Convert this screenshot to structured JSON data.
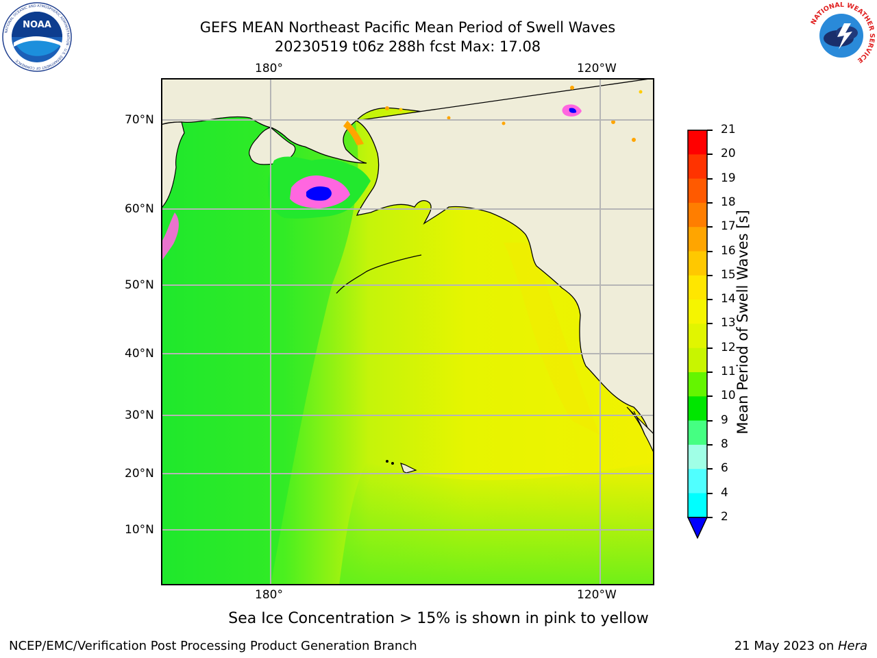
{
  "title": {
    "line1": "GEFS MEAN Northeast Pacific Mean Period of Swell Waves",
    "line2": "20230519 t06z 288h fcst   Max: 17.08"
  },
  "map": {
    "lon_ticks_top": [
      "180°",
      "120°W"
    ],
    "lon_ticks_bottom": [
      "180°",
      "120°W"
    ],
    "lat_ticks": [
      "70°N",
      "60°N",
      "50°N",
      "40°N",
      "30°N",
      "20°N",
      "10°N"
    ],
    "land_color": "#efedd9",
    "grid_color": "#b5b5b5"
  },
  "colorbar": {
    "label": "Mean Period of Swell Waves [s]",
    "ticks": [
      "21",
      "20",
      "19",
      "18",
      "17",
      "16",
      "15",
      "14",
      "13",
      "12",
      "11",
      "10",
      "9",
      "8",
      "6",
      "4",
      "2"
    ],
    "colors": [
      "#ff0000",
      "#ff3300",
      "#ff5a00",
      "#ff7e00",
      "#ffa500",
      "#ffc800",
      "#ffe600",
      "#f5f500",
      "#e1f500",
      "#c8f500",
      "#64f500",
      "#00e600",
      "#45ff82",
      "#a0ffe6",
      "#50ffff",
      "#00ffff",
      "#00c8ff",
      "#0064ff",
      "#0000ff"
    ]
  },
  "note": "Sea Ice Concentration > 15% is shown in pink to yellow",
  "footer": {
    "left": "NCEP/EMC/Verification Post Processing Product Generation Branch",
    "date": "21 May 2023 on ",
    "machine": "Hera"
  },
  "logos": {
    "noaa": "NOAA",
    "nws": "NATIONAL WEATHER SERVICE"
  }
}
